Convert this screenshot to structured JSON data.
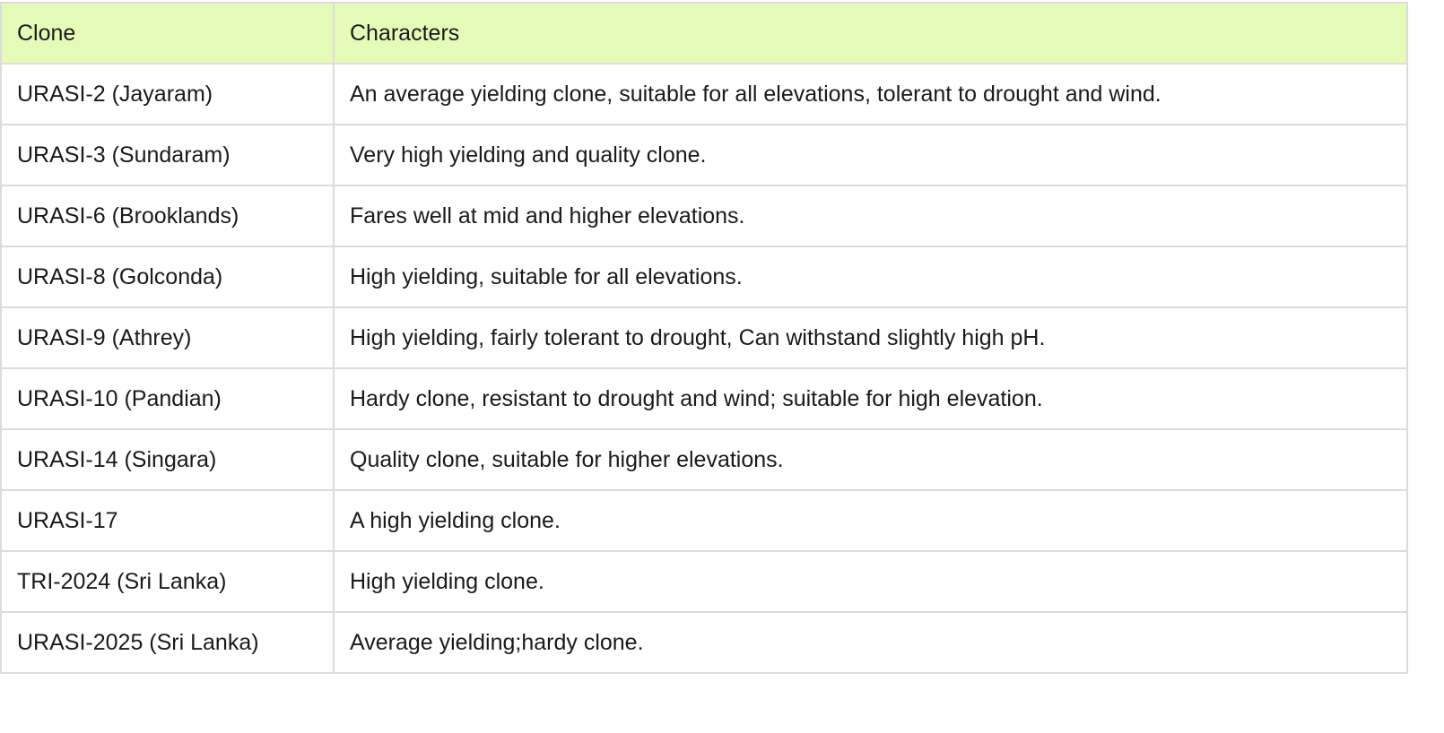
{
  "table": {
    "headers": [
      "Clone",
      "Characters"
    ],
    "rows": [
      [
        "URASI-2 (Jayaram)",
        "An average yielding clone, suitable for all elevations, tolerant to drought and wind."
      ],
      [
        "URASI-3 (Sundaram)",
        "Very high yielding and quality clone."
      ],
      [
        "URASI-6 (Brooklands)",
        "Fares well at mid and higher elevations."
      ],
      [
        "URASI-8 (Golconda)",
        "High yielding, suitable for all elevations."
      ],
      [
        "URASI-9 (Athrey)",
        "High yielding, fairly tolerant to drought, Can withstand slightly high pH."
      ],
      [
        "URASI-10 (Pandian)",
        "Hardy clone, resistant to drought and wind; suitable for high elevation."
      ],
      [
        "URASI-14 (Singara)",
        "Quality clone, suitable for higher elevations."
      ],
      [
        "URASI-17",
        "A high yielding clone."
      ],
      [
        "TRI-2024 (Sri Lanka)",
        "High yielding clone."
      ],
      [
        "URASI-2025 (Sri Lanka)",
        "Average yielding;hardy clone."
      ]
    ]
  },
  "colors": {
    "header_bg": "#e4fcb8",
    "border": "#dcdcdc"
  }
}
